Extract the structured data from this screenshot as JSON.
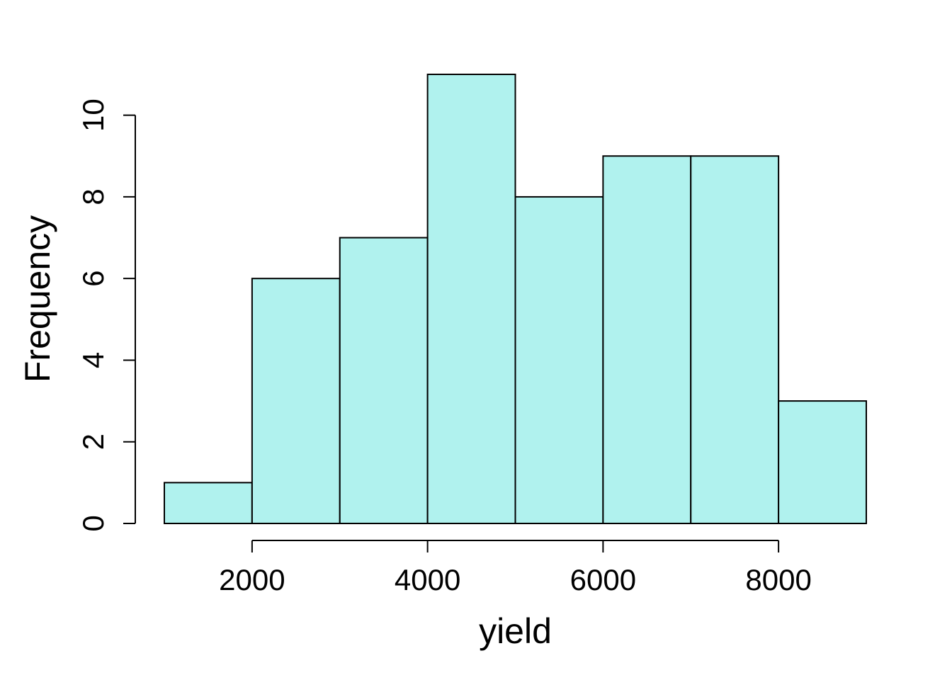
{
  "chart_data": {
    "type": "bar",
    "title": "",
    "xlabel": "yield",
    "ylabel": "Frequency",
    "bin_edges": [
      1000,
      2000,
      3000,
      4000,
      5000,
      6000,
      7000,
      8000,
      9000
    ],
    "values": [
      1,
      6,
      7,
      11,
      8,
      9,
      9,
      3
    ],
    "xlim": [
      1000,
      9000
    ],
    "ylim": [
      0,
      11
    ],
    "x_ticks": [
      2000,
      4000,
      6000,
      8000
    ],
    "y_ticks": [
      0,
      2,
      4,
      6,
      8,
      10
    ],
    "bar_color": "#b0f2ee",
    "grid": false
  }
}
